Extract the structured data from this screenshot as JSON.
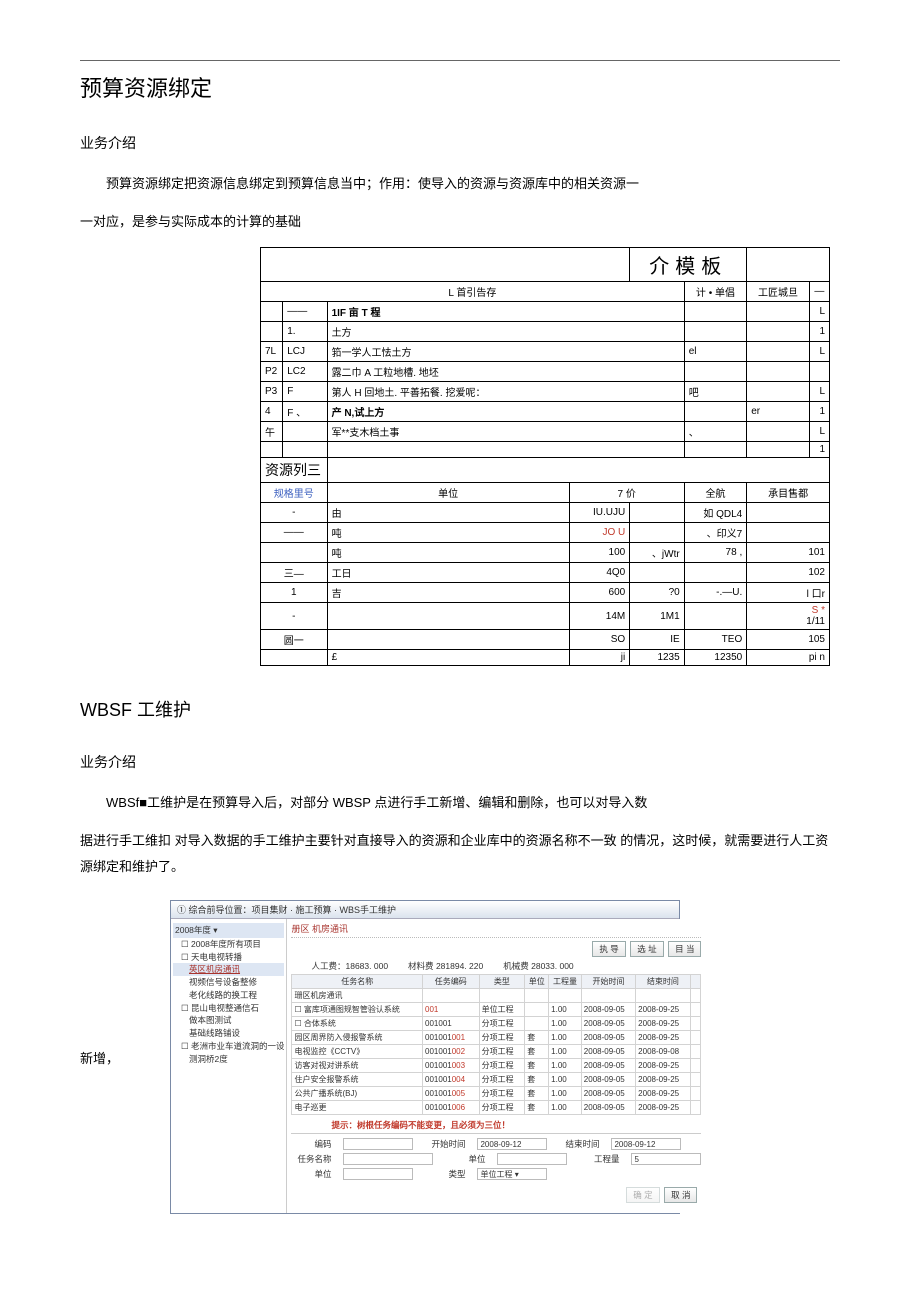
{
  "hr": {},
  "titles": {
    "h1_main": "预算资源绑定",
    "h2_intro1": "业务介绍",
    "h1_wbs": "WBSF 工维护",
    "h2_intro2": "业务介绍"
  },
  "para": {
    "p1_a": "预算资源绑定把资源信息绑定到预算信息当中；作用：使导入的资源与资源库中的相关资源一",
    "p1_b": "一对应，是参与实际成本的计算的基础",
    "p2_a": "WBSf■工维护是在预算导入后，对部分 WBSP 点进行手工新增、编辑和删除，也可以对导入数",
    "p2_b": "据进行手工维扣 对导入数据的手工维护主要针对直接导入的资源和企业库中的资源名称不一致 的情况，这时候，就需要进行人工资源绑定和维护了。",
    "add_label": "新增，"
  },
  "table1": {
    "big_label": "介模板",
    "hdr_mid": "L 首引告存",
    "hdr_unit": "计 • 单倡",
    "hdr_right": "工匠城旦",
    "rows_top": [
      {
        "c1": "",
        "c2": "——",
        "c3_bold": "1IF 亩 T 程",
        "c4": "",
        "c5": "",
        "c6": "L"
      },
      {
        "c1": "",
        "c2": "1.",
        "c3": "土方",
        "c4": "",
        "c5": "",
        "c6": "1"
      },
      {
        "c1": "7L",
        "c2": "LCJ",
        "c3": "筘一学人工怯土方",
        "c4": "el",
        "c5": "",
        "c6": "L"
      },
      {
        "c1": "P2",
        "c2": "LC2",
        "c3": "露二巾 A 工粒地槽. 地坯",
        "c4": "",
        "c5": "",
        "c6": ""
      },
      {
        "c1": "P3",
        "c2": "F",
        "c3": "第人 H 回地土. 平善拓餐. 挖爱呢：",
        "c4": "吧",
        "c5": "",
        "c6": "L"
      },
      {
        "c1": "4",
        "c2": "F    、",
        "c3_bold": "产 N,试上方",
        "c4": "",
        "c5": "er",
        "c6": "1"
      },
      {
        "c1": "午",
        "c2": "",
        "c3": "军**支木档土事",
        "c4": "、",
        "c5": "",
        "c6": "L"
      },
      {
        "c1": "",
        "c2": "",
        "c3": "",
        "c4": "",
        "c5": "",
        "c6": "1"
      }
    ],
    "section_label": "资源列三",
    "hdr2": {
      "c1": "规格里号",
      "c2": "单位",
      "c3": "7 价",
      "c4": "全航",
      "c5": "承目售都"
    },
    "rows_bot": [
      {
        "c1": "-",
        "c2": "由",
        "c3r": "IU.UJU",
        "c3b": "",
        "c4": "如 QDL4",
        "c5": ""
      },
      {
        "c1": "——",
        "c2": "吨",
        "c3r_red": "JO U",
        "c3b": "",
        "c4": "、印义7",
        "c5": ""
      },
      {
        "c1": "",
        "c2": "吨",
        "c3r": "100",
        "c3b": "、jWtr",
        "c4": "78       ,",
        "c5": "101"
      },
      {
        "c1": "三—",
        "c2": "工日",
        "c3r": "4Q0",
        "c3b": "",
        "c4": "",
        "c5": "102"
      },
      {
        "c1": "1",
        "c2": "吉",
        "c3r": "600",
        "c3b": "?0",
        "c4": "-.—U.",
        "c5": "l 口r"
      },
      {
        "c1": "-",
        "c2": "",
        "c3r": "14M",
        "c3b": "1M1",
        "c4": "",
        "c5_red": "S   *",
        "c5b": "1/11"
      },
      {
        "c1": "圆一",
        "c2": "",
        "c3r": "SO",
        "c3b": "IE",
        "c4": "TEO",
        "c5": "105"
      },
      {
        "c1": "",
        "c2": "£",
        "c3r": "ji",
        "c3b": "1235",
        "c4": "12350",
        "c5": "pi n"
      }
    ]
  },
  "shot": {
    "titlebar": "① 综合前导位置：项目集财 · 施工预算 · WBS手工维护",
    "tree_top": "2008年度 ▾",
    "tree": [
      {
        "t": "☐ 2008年度所有项目",
        "lvl": 0
      },
      {
        "t": "☐ 天电电视转播",
        "lvl": 1
      },
      {
        "t": "英区机房通讯",
        "lvl": 2,
        "link": true,
        "sel": true
      },
      {
        "t": "视频信号设备整修",
        "lvl": 2
      },
      {
        "t": "老化线路的换工程",
        "lvl": 2
      },
      {
        "t": "☐ 昆山电视整通信石",
        "lvl": 1
      },
      {
        "t": "做本图测试",
        "lvl": 2
      },
      {
        "t": "基础线路铺设",
        "lvl": 2
      },
      {
        "t": "☐ 老洲市业车道流洞的一设",
        "lvl": 1
      },
      {
        "t": "测洞桥2度",
        "lvl": 2
      }
    ],
    "crumb": "册区 机房通讯",
    "buttons": {
      "b1": "执 导",
      "b2": "选 址",
      "b3": "目 当"
    },
    "stats": {
      "l1": "人工费：",
      "v1": "18683. 000",
      "l2": "材料费",
      "v2": "281894. 220",
      "l3": "机械费",
      "v3": "28033. 000"
    },
    "grid_hdr": [
      "任务名称",
      "任务编码",
      "类型",
      "单位",
      "工程量",
      "开始时间",
      "结束时间",
      ""
    ],
    "grid_rows": [
      {
        "n": "珊区机房通讯",
        "c": "",
        "t": "",
        "u": "",
        "q": "",
        "s": "",
        "e": "",
        "b": ""
      },
      {
        "n": "☐ 富库项通图规智管验认系统",
        "c": "001",
        "red": true,
        "t": "单位工程",
        "u": "",
        "q": "1.00",
        "s": "2008-09-05",
        "e": "2008-09-25",
        "b": ""
      },
      {
        "n": "  ☐ 合体系统",
        "c": "001001",
        "t": "分项工程",
        "u": "",
        "q": "1.00",
        "s": "2008-09-05",
        "e": "2008-09-25",
        "b": ""
      },
      {
        "n": "    园区周界防入侵报警系统",
        "c": "001001001",
        "red": true,
        "t": "分项工程",
        "u": "套",
        "q": "1.00",
        "s": "2008-09-05",
        "e": "2008-09-25",
        "b": ""
      },
      {
        "n": "    电视监控《CCTV》",
        "c": "001001002",
        "red": true,
        "t": "分项工程",
        "u": "套",
        "q": "1.00",
        "s": "2008-09-05",
        "e": "2008-09-08",
        "b": ""
      },
      {
        "n": "    访客对视对讲系统",
        "c": "001001003",
        "red": true,
        "t": "分项工程",
        "u": "套",
        "q": "1.00",
        "s": "2008-09-05",
        "e": "2008-09-25",
        "b": ""
      },
      {
        "n": "    住户安全报警系统",
        "c": "001001004",
        "red": true,
        "t": "分项工程",
        "u": "套",
        "q": "1.00",
        "s": "2008-09-05",
        "e": "2008-09-25",
        "b": ""
      },
      {
        "n": "    公共广播系统(BJ)",
        "c": "001001005",
        "red": true,
        "t": "分项工程",
        "u": "套",
        "q": "1.00",
        "s": "2008-09-05",
        "e": "2008-09-25",
        "b": ""
      },
      {
        "n": "    电子巡更",
        "c": "001001006",
        "red": true,
        "t": "分项工程",
        "u": "套",
        "q": "1.00",
        "s": "2008-09-05",
        "e": "2008-09-25",
        "b": ""
      }
    ],
    "warn": "提示：树根任务编码不能变更，且必须为三位！",
    "form": {
      "l_code": "编码",
      "l_start": "开始时间",
      "v_start": "2008-09-12",
      "l_end": "结束时间",
      "v_end": "2008-09-12",
      "l_name": "任务名称",
      "l_unit": "单位",
      "l_qty": "工程量",
      "v_qty": "5",
      "l_u2": "单位",
      "l_type": "类型",
      "v_type": "单位工程   ▾"
    },
    "footer": {
      "ok": "确 定",
      "cancel": "取 消"
    }
  }
}
